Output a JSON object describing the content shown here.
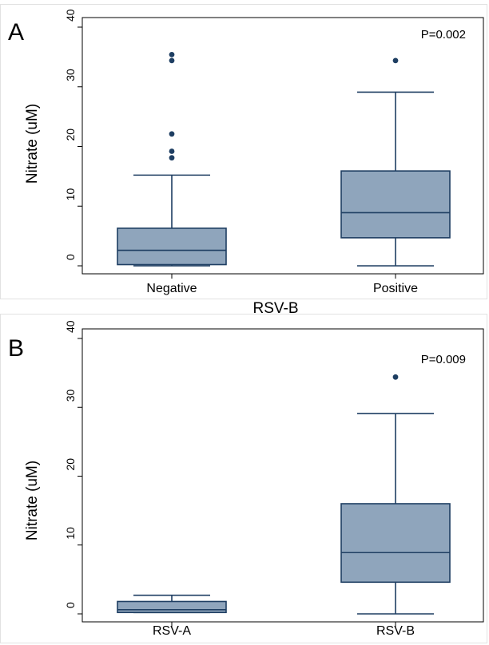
{
  "chart_data": [
    {
      "type": "box",
      "panel_label": "A",
      "ylabel": "Nitrate (uM)",
      "xlabel": "RSV-B",
      "annotation": "P=0.002",
      "ylim": [
        0,
        40
      ],
      "yticks": [
        0,
        10,
        20,
        30,
        40
      ],
      "categories": [
        "Negative",
        "Positive"
      ],
      "boxes": [
        {
          "category": "Negative",
          "whisker_low": 0,
          "q1": 0.2,
          "median": 2.6,
          "q3": 6.3,
          "whisker_high": 15.2,
          "outliers": [
            18.1,
            19.2,
            22.1,
            34.4,
            35.4
          ]
        },
        {
          "category": "Positive",
          "whisker_low": 0,
          "q1": 4.7,
          "median": 8.9,
          "q3": 15.9,
          "whisker_high": 29.1,
          "outliers": [
            34.4
          ]
        }
      ],
      "colors": {
        "box_fill": "#8fa5bc",
        "line": "#1e3e62",
        "outlier": "#1e3e62"
      },
      "grid": false
    },
    {
      "type": "box",
      "panel_label": "B",
      "ylabel": "Nitrate (uM)",
      "xlabel": "",
      "annotation": "P=0.009",
      "ylim": [
        0,
        40
      ],
      "yticks": [
        0,
        10,
        20,
        30,
        40
      ],
      "categories": [
        "RSV-A",
        "RSV-B"
      ],
      "boxes": [
        {
          "category": "RSV-A",
          "whisker_low": 0.2,
          "q1": 0.2,
          "median": 0.6,
          "q3": 1.8,
          "whisker_high": 2.7,
          "outliers": []
        },
        {
          "category": "RSV-B",
          "whisker_low": 0,
          "q1": 4.6,
          "median": 8.9,
          "q3": 16.0,
          "whisker_high": 29.1,
          "outliers": [
            34.4
          ]
        }
      ],
      "colors": {
        "box_fill": "#8fa5bc",
        "line": "#1e3e62",
        "outlier": "#1e3e62"
      },
      "grid": false
    }
  ]
}
